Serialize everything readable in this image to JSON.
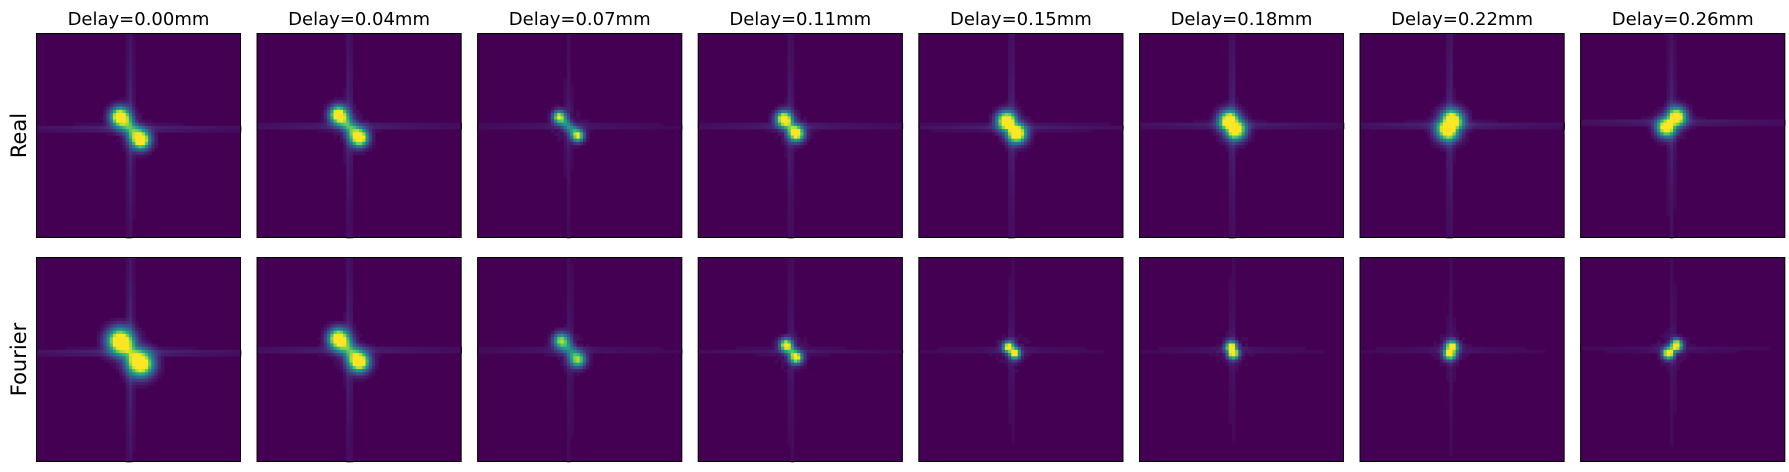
{
  "chart_data": {
    "type": "heatmap",
    "colormap": "viridis",
    "background_color": "#440154",
    "grid": false,
    "axes_ticks": false,
    "rows": [
      "Real",
      "Fourier"
    ],
    "columns": [
      "Delay=0.00mm",
      "Delay=0.04mm",
      "Delay=0.07mm",
      "Delay=0.11mm",
      "Delay=0.15mm",
      "Delay=0.18mm",
      "Delay=0.22mm",
      "Delay=0.26mm"
    ],
    "delays_mm": [
      0.0,
      0.04,
      0.07,
      0.11,
      0.15,
      0.18,
      0.22,
      0.26
    ],
    "description_note": "",
    "panels": {
      "Real": [
        {
          "spot_a": [
            0.41,
            0.41
          ],
          "spot_b": [
            0.51,
            0.52
          ],
          "spread": 0.03,
          "peak": 1.0,
          "streak": 0.09
        },
        {
          "spot_a": [
            0.4,
            0.4
          ],
          "spot_b": [
            0.5,
            0.51
          ],
          "spread": 0.028,
          "peak": 1.0,
          "streak": 0.08
        },
        {
          "spot_a": [
            0.4,
            0.41
          ],
          "spot_b": [
            0.49,
            0.5
          ],
          "spread": 0.02,
          "peak": 0.7,
          "streak": 0.05
        },
        {
          "spot_a": [
            0.42,
            0.42
          ],
          "spot_b": [
            0.48,
            0.49
          ],
          "spread": 0.025,
          "peak": 0.9,
          "streak": 0.07
        },
        {
          "spot_a": [
            0.43,
            0.43
          ],
          "spot_b": [
            0.48,
            0.49
          ],
          "spread": 0.03,
          "peak": 1.0,
          "streak": 0.08
        },
        {
          "spot_a": [
            0.44,
            0.43
          ],
          "spot_b": [
            0.47,
            0.47
          ],
          "spread": 0.032,
          "peak": 1.0,
          "streak": 0.08
        },
        {
          "spot_a": [
            0.45,
            0.43
          ],
          "spot_b": [
            0.43,
            0.47
          ],
          "spread": 0.035,
          "peak": 1.0,
          "streak": 0.09
        },
        {
          "spot_a": [
            0.47,
            0.41
          ],
          "spot_b": [
            0.42,
            0.46
          ],
          "spread": 0.03,
          "peak": 0.9,
          "streak": 0.08
        }
      ],
      "Fourier": [
        {
          "spot_a": [
            0.41,
            0.41
          ],
          "spot_b": [
            0.51,
            0.52
          ],
          "spread": 0.04,
          "peak": 1.0,
          "streak": 0.1
        },
        {
          "spot_a": [
            0.4,
            0.4
          ],
          "spot_b": [
            0.5,
            0.51
          ],
          "spread": 0.032,
          "peak": 1.0,
          "streak": 0.08
        },
        {
          "spot_a": [
            0.41,
            0.41
          ],
          "spot_b": [
            0.49,
            0.5
          ],
          "spread": 0.025,
          "peak": 0.6,
          "streak": 0.05
        },
        {
          "spot_a": [
            0.43,
            0.43
          ],
          "spot_b": [
            0.48,
            0.49
          ],
          "spread": 0.02,
          "peak": 0.8,
          "streak": 0.05
        },
        {
          "spot_a": [
            0.44,
            0.44
          ],
          "spot_b": [
            0.47,
            0.47
          ],
          "spread": 0.018,
          "peak": 0.8,
          "streak": 0.04
        },
        {
          "spot_a": [
            0.45,
            0.44
          ],
          "spot_b": [
            0.46,
            0.47
          ],
          "spread": 0.018,
          "peak": 0.9,
          "streak": 0.04
        },
        {
          "spot_a": [
            0.45,
            0.44
          ],
          "spot_b": [
            0.44,
            0.47
          ],
          "spread": 0.02,
          "peak": 0.9,
          "streak": 0.04
        },
        {
          "spot_a": [
            0.47,
            0.43
          ],
          "spot_b": [
            0.43,
            0.47
          ],
          "spread": 0.018,
          "peak": 0.9,
          "streak": 0.04
        }
      ]
    }
  }
}
